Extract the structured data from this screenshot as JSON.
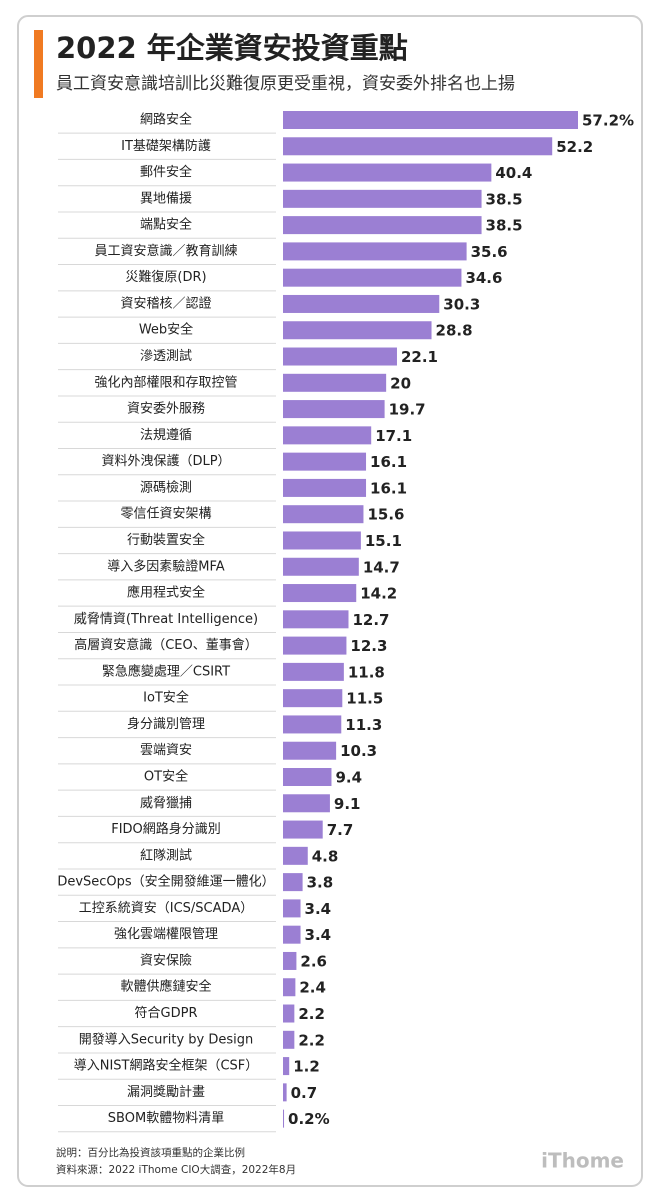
{
  "chart_data": {
    "type": "hbar",
    "title": "2022 年企業資安投資重點",
    "subtitle": "員工資安意識培訓比災難復原更受重視，資安委外排名也上揚",
    "categories": [
      "網路安全",
      "IT基礎架構防護",
      "郵件安全",
      "異地備援",
      "端點安全",
      "員工資安意識／教育訓練",
      "災難復原(DR)",
      "資安稽核／認證",
      "Web安全",
      "滲透測試",
      "強化內部權限和存取控管",
      "資安委外服務",
      "法規遵循",
      "資料外洩保護（DLP）",
      "源碼檢測",
      "零信任資安架構",
      "行動裝置安全",
      "導入多因素驗證MFA",
      "應用程式安全",
      "威脅情資(Threat Intelligence)",
      "高層資安意識（CEO、董事會）",
      "緊急應變處理／CSIRT",
      "IoT安全",
      "身分識別管理",
      "雲端資安",
      "OT安全",
      "威脅獵捕",
      "FIDO網路身分識別",
      "紅隊測試",
      "DevSecOps（安全開發維運一體化）",
      "工控系統資安（ICS/SCADA）",
      "強化雲端權限管理",
      "資安保險",
      "軟體供應鏈安全",
      "符合GDPR",
      "開發導入Security by Design",
      "導入NIST網路安全框架（CSF）",
      "漏洞獎勵計畫",
      "SBOM軟體物料清單"
    ],
    "values": [
      57.2,
      52.2,
      40.4,
      38.5,
      38.5,
      35.6,
      34.6,
      30.3,
      28.8,
      22.1,
      20,
      19.7,
      17.1,
      16.1,
      16.1,
      15.6,
      15.1,
      14.7,
      14.2,
      12.7,
      12.3,
      11.8,
      11.5,
      11.3,
      10.3,
      9.4,
      9.1,
      7.7,
      4.8,
      3.8,
      3.4,
      3.4,
      2.6,
      2.4,
      2.2,
      2.2,
      1.2,
      0.7,
      0.2
    ],
    "value_labels": [
      "57.2%",
      "52.2",
      "40.4",
      "38.5",
      "38.5",
      "35.6",
      "34.6",
      "30.3",
      "28.8",
      "22.1",
      "20",
      "19.7",
      "17.1",
      "16.1",
      "16.1",
      "15.6",
      "15.1",
      "14.7",
      "14.2",
      "12.7",
      "12.3",
      "11.8",
      "11.5",
      "11.3",
      "10.3",
      "9.4",
      "9.1",
      "7.7",
      "4.8",
      "3.8",
      "3.4",
      "3.4",
      "2.6",
      "2.4",
      "2.2",
      "2.2",
      "1.2",
      "0.7",
      "0.2%"
    ],
    "color": "#9b7fd3",
    "note": "說明：百分比為投資該項重點的企業比例",
    "source": "資料來源：2022 iThome CIO大調查，2022年8月",
    "brand": "iThome"
  }
}
